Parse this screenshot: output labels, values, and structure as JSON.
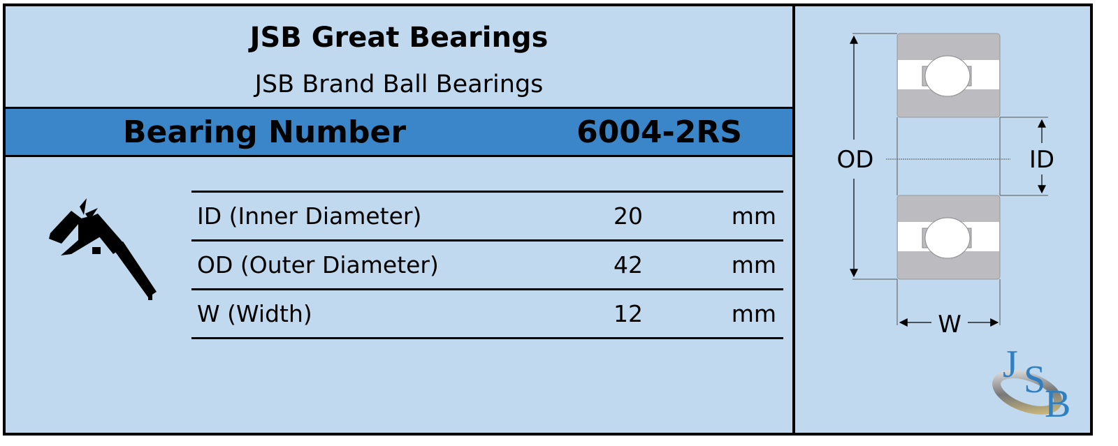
{
  "header": {
    "title": "JSB Great Bearings",
    "subtitle": "JSB Brand Ball Bearings"
  },
  "bearing": {
    "label": "Bearing Number",
    "value": "6004-2RS"
  },
  "specs": [
    {
      "label": "ID (Inner Diameter)",
      "value": "20",
      "unit": "mm"
    },
    {
      "label": "OD (Outer Diameter)",
      "value": "42",
      "unit": "mm"
    },
    {
      "label": "W (Width)",
      "value": "12",
      "unit": "mm"
    }
  ],
  "diagram": {
    "od_label": "OD",
    "id_label": "ID",
    "w_label": "W"
  },
  "logo": {
    "text": "JSB"
  },
  "colors": {
    "background": "#c1d9ee",
    "bar": "#3b86c8",
    "logo": "#2f7fc1",
    "bearing_gray": "#bcbcc0"
  },
  "icons": [
    "caliper-icon",
    "bearing-cross-section",
    "jsb-logo"
  ]
}
